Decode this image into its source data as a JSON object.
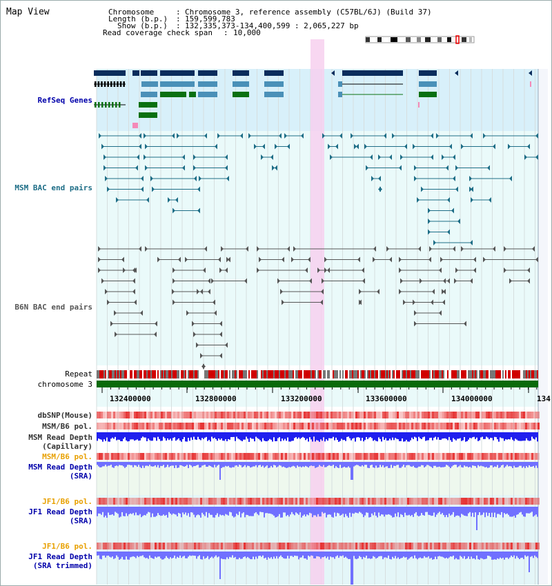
{
  "title": "Map View",
  "header": {
    "chromosome_key": "Chromosome",
    "chromosome_val": "Chromosome 3, reference assembly (C57BL/6J) (Build 37)",
    "length_key": "Length (b.p.)",
    "length_val": "159,599,783",
    "show_key": "Show (b.p.)",
    "show_val": "132,335,373-134,400,599 : 2,065,227 bp",
    "coverage_key": "Read coverage check span",
    "coverage_val": "10,000"
  },
  "tracks": {
    "refseq": "RefSeq Genes",
    "msm_bac": "MSM BAC end pairs",
    "b6n_bac": "B6N BAC end pairs",
    "repeat": "Repeat",
    "chromosome": "chromosome 3",
    "dbsnp": "dbSNP(Mouse)",
    "msm_b6_pol": "MSM/B6 pol.",
    "msm_read_depth_cap_1": "MSM Read Depth",
    "msm_read_depth_cap_2": "(Capillary)",
    "msm_b6_pol_sra": "MSM/B6 pol.",
    "msm_read_depth_sra_1": "MSM Read Depth",
    "msm_read_depth_sra_2": "(SRA)",
    "jf1_b6_pol": "JF1/B6 pol.",
    "jf1_read_depth_1": "JF1 Read Depth",
    "jf1_read_depth_2": "(SRA)",
    "jf1_b6_pol_trim": "JF1/B6 pol.",
    "jf1_read_depth_trim_1": "JF1 Read Depth",
    "jf1_read_depth_trim_2": "(SRA trimmed)"
  },
  "axis_ticks": [
    "132400000",
    "132800000",
    "133200000",
    "133600000",
    "134000000",
    "134"
  ],
  "colors": {
    "refseq_bg": "#d8f0fa",
    "bac_bg": "#eafafa",
    "highlight": "#f7d0ee",
    "gene_navy": "#0a2c5c",
    "gene_steel": "#4a90b8",
    "gene_green": "#0a7010",
    "teal": "#1d6d86",
    "gray": "#555555",
    "chrom_green": "#0a6a0a",
    "depth_blue": "#2020ee",
    "depth_light": "#7070ff"
  }
}
